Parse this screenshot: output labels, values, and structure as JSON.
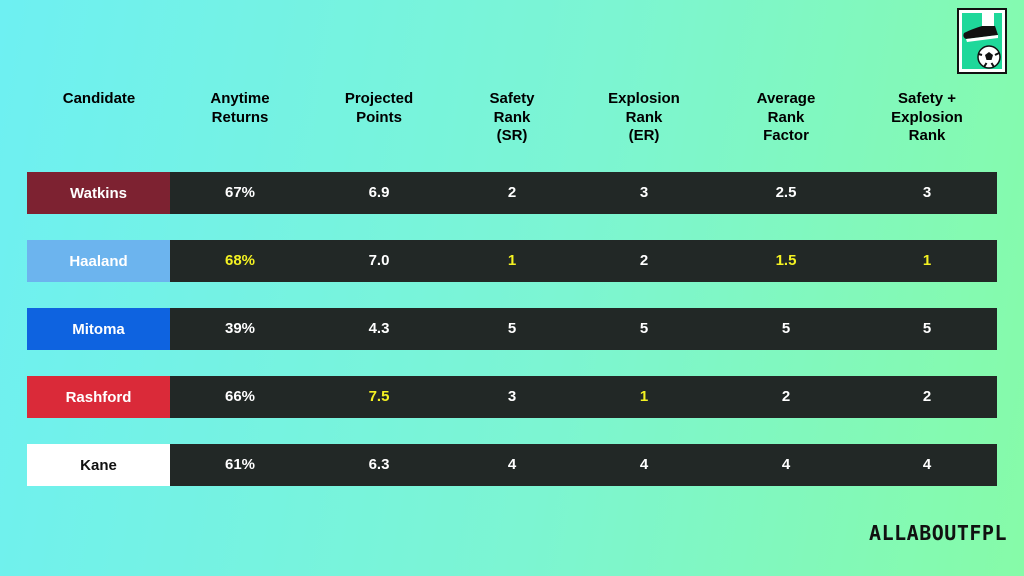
{
  "chart_data": {
    "type": "table",
    "columns": [
      "Candidate",
      "Anytime Returns",
      "Projected Points",
      "Safety Rank (SR)",
      "Explosion Rank (ER)",
      "Average Rank Factor",
      "Safety + Explosion Rank"
    ],
    "header_lines": [
      [
        "Candidate"
      ],
      [
        "Anytime",
        "Returns"
      ],
      [
        "Projected",
        "Points"
      ],
      [
        "Safety",
        "Rank",
        "(SR)"
      ],
      [
        "Explosion",
        "Rank",
        "(ER)"
      ],
      [
        "Average",
        "Rank",
        "Factor"
      ],
      [
        "Safety +",
        "Explosion",
        "Rank"
      ]
    ],
    "rows": [
      {
        "name": "Watkins",
        "name_bg": "#7d2231",
        "name_color": "#ffffff",
        "values": [
          "67%",
          "6.9",
          "2",
          "3",
          "2.5",
          "3"
        ],
        "highlight": [
          false,
          false,
          false,
          false,
          false,
          false
        ]
      },
      {
        "name": "Haaland",
        "name_bg": "#6cb4ee",
        "name_color": "#ffffff",
        "values": [
          "68%",
          "7.0",
          "1",
          "2",
          "1.5",
          "1"
        ],
        "highlight": [
          true,
          false,
          true,
          false,
          true,
          true
        ]
      },
      {
        "name": "Mitoma",
        "name_bg": "#0e63e0",
        "name_color": "#ffffff",
        "values": [
          "39%",
          "4.3",
          "5",
          "5",
          "5",
          "5"
        ],
        "highlight": [
          false,
          false,
          false,
          false,
          false,
          false
        ]
      },
      {
        "name": "Rashford",
        "name_bg": "#da2a39",
        "name_color": "#ffffff",
        "values": [
          "66%",
          "7.5",
          "3",
          "1",
          "2",
          "2"
        ],
        "highlight": [
          false,
          true,
          false,
          true,
          false,
          false
        ]
      },
      {
        "name": "Kane",
        "name_bg": "#ffffff",
        "name_color": "#111111",
        "values": [
          "61%",
          "6.3",
          "4",
          "4",
          "4",
          "4"
        ],
        "highlight": [
          false,
          false,
          false,
          false,
          false,
          false
        ]
      }
    ],
    "colors": {
      "data_bg": "#222826",
      "text": "#ffffff",
      "highlight": "#f4f222"
    }
  },
  "brand": "ALLABOUTFPL",
  "logo_icon": "football-boot-ball-icon"
}
